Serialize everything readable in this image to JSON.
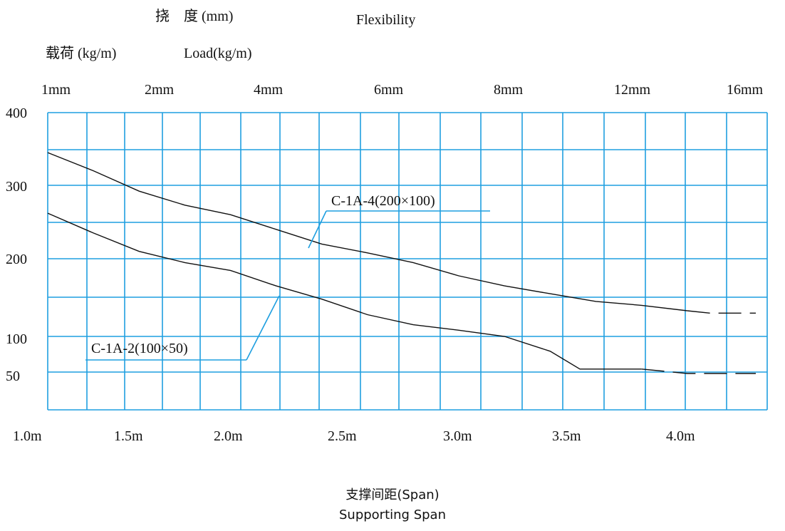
{
  "header": {
    "flex_cn": "挠　度 (mm)",
    "flex_en": "Flexibility",
    "load_cn": "载荷 (kg/m)",
    "load_en": "Load(kg/m)"
  },
  "caption": {
    "cn": "支撑间距(Span)",
    "en": "Supporting Span"
  },
  "colors": {
    "grid": "#1f9fe0",
    "curve": "#111111",
    "background": "#ffffff"
  },
  "chart_data": {
    "type": "line",
    "title": "",
    "xlabel": "支撑间距(Span) Supporting Span",
    "ylabel": "载荷 (kg/m) Load(kg/m)",
    "x_unit": "m",
    "xlim": [
      1.0,
      4.15
    ],
    "x_tick_labels": [
      "1.0m",
      "1.5m",
      "2.0m",
      "2.5m",
      "3.0m",
      "3.5m",
      "4.0m"
    ],
    "y_tick_labels": [
      "400",
      "300",
      "200",
      "100",
      "50"
    ],
    "deflection_tick_labels": [
      "1mm",
      "2mm",
      "4mm",
      "6mm",
      "8mm",
      "12mm",
      "16mm"
    ],
    "grid": true,
    "series": [
      {
        "name": "C-1A-4(200×100)",
        "x": [
          1.0,
          1.2,
          1.4,
          1.6,
          1.8,
          2.0,
          2.2,
          2.4,
          2.6,
          2.8,
          3.0,
          3.2,
          3.4,
          3.6,
          3.8,
          3.9,
          4.1
        ],
        "y": [
          345,
          320,
          292,
          273,
          260,
          240,
          220,
          208,
          195,
          178,
          165,
          155,
          145,
          140,
          133,
          130,
          130
        ],
        "dashed_from": 3.8
      },
      {
        "name": "C-1A-2(100×50)",
        "x": [
          1.0,
          1.2,
          1.4,
          1.6,
          1.8,
          2.0,
          2.2,
          2.4,
          2.6,
          2.8,
          3.0,
          3.2,
          3.33,
          3.6,
          3.8,
          4.0,
          4.1
        ],
        "y": [
          262,
          235,
          210,
          195,
          185,
          165,
          148,
          128,
          115,
          108,
          100,
          90,
          78,
          78,
          75,
          75,
          75
        ],
        "dashed_from": 3.6
      }
    ]
  }
}
